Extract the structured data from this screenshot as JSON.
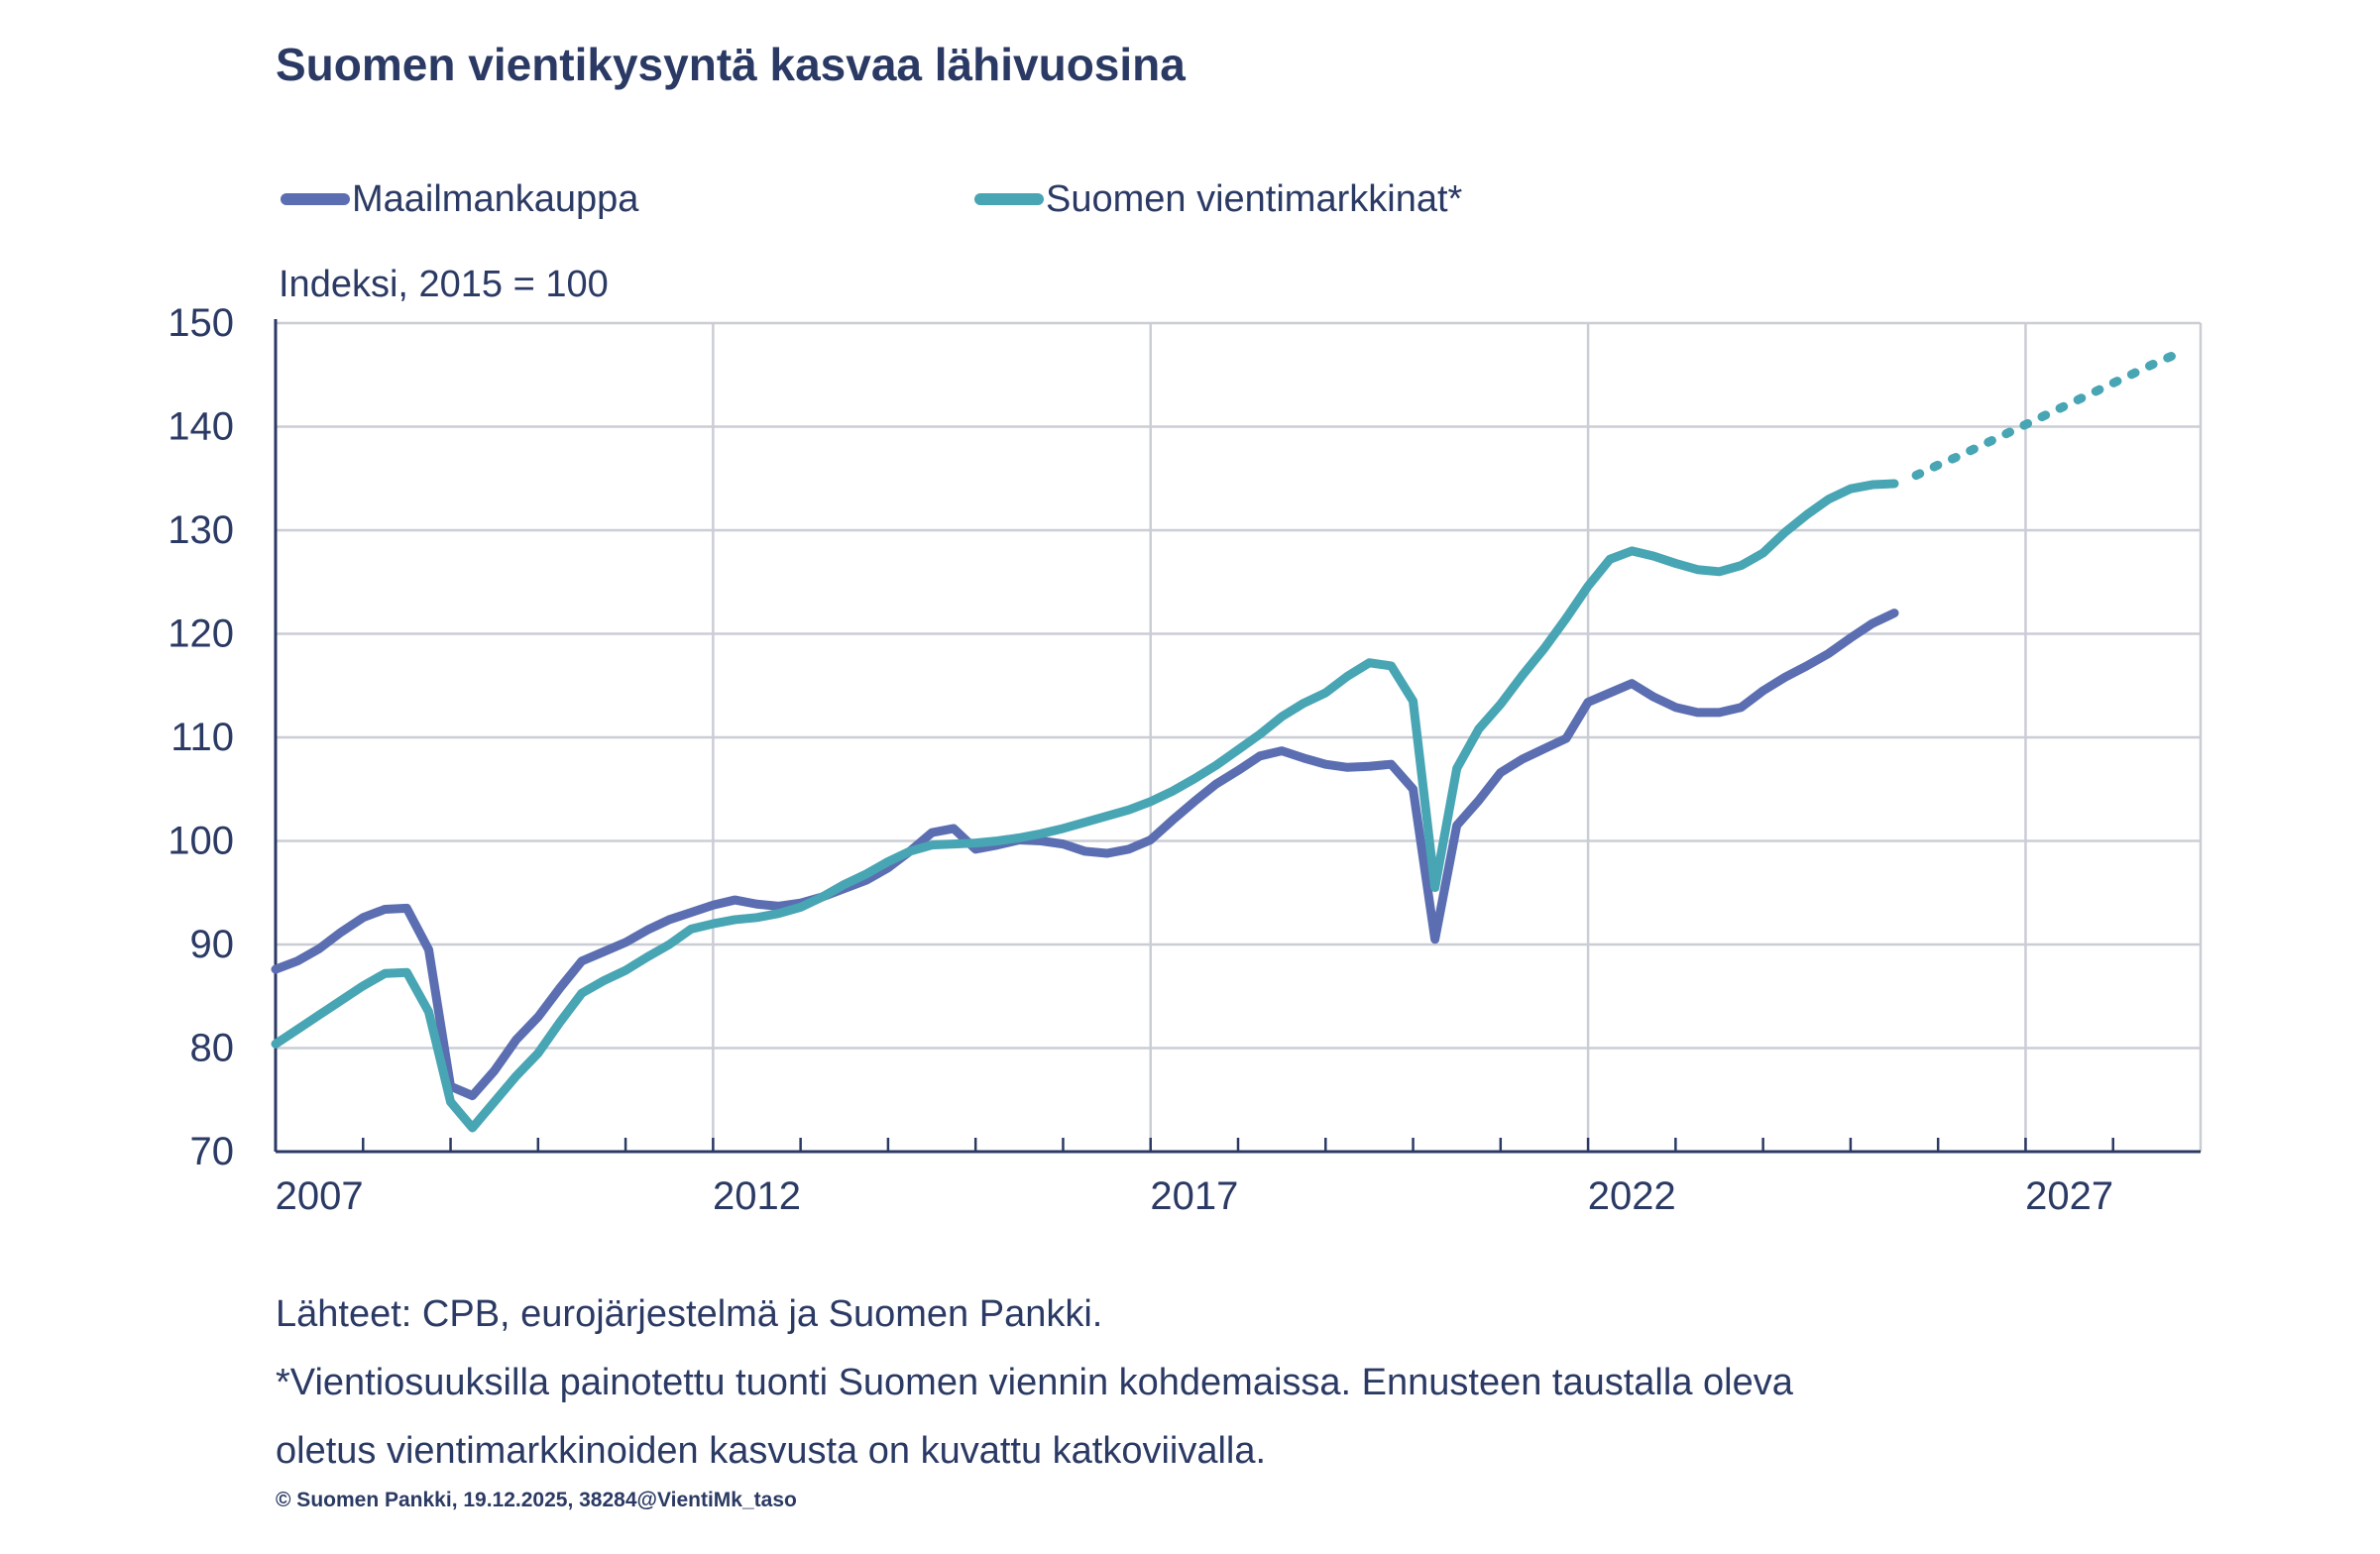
{
  "title": "Suomen vientikysyntä kasvaa lähivuosina",
  "legend": {
    "items": [
      {
        "label": "Maailmankauppa",
        "color": "#5B6EB1"
      },
      {
        "label": "Suomen vientimarkkinat*",
        "color": "#48A5B4"
      }
    ]
  },
  "unit_label": "Indeksi, 2015 = 100",
  "footer": {
    "sources": "Lähteet: CPB, eurojärjestelmä ja Suomen Pankki.",
    "footnote_line1": "*Vientiosuuksilla painotettu tuonti Suomen viennin kohdemaissa. Ennusteen taustalla oleva",
    "footnote_line2": "oletus vientimarkkinoiden kasvusta on kuvattu katkoviivalla.",
    "copyright": "© Suomen Pankki, 19.12.2025, 38284@VientiMk_taso"
  },
  "colors": {
    "text": "#2B3A64",
    "axis": "#2B3A64",
    "gridline": "#CBCDD5",
    "world_trade": "#5B6EB1",
    "export_markets": "#48A5B4",
    "background": "#FFFFFF"
  },
  "chart_data": {
    "type": "line",
    "title": "Suomen vientikysyntä kasvaa lähivuosina",
    "ylabel": "Indeksi, 2015 = 100",
    "xlabel": "",
    "frequency": "quarterly",
    "xlim": [
      2007,
      2029
    ],
    "ylim": [
      70,
      150
    ],
    "y_ticks": [
      70,
      80,
      90,
      100,
      110,
      120,
      130,
      140,
      150
    ],
    "x_ticks": [
      2007,
      2012,
      2017,
      2022,
      2027
    ],
    "x_gridlines": [
      2012,
      2017,
      2022,
      2027
    ],
    "grid": "on",
    "legend_position": "top",
    "series": [
      {
        "name": "Maailmankauppa",
        "color": "#5B6EB1",
        "style": "solid",
        "start": 2007.0,
        "step": 0.25,
        "values": [
          87.6,
          88.4,
          89.6,
          91.2,
          92.6,
          93.4,
          93.5,
          89.5,
          76.3,
          75.4,
          77.8,
          80.8,
          83.0,
          85.8,
          88.4,
          89.3,
          90.2,
          91.4,
          92.4,
          93.1,
          93.8,
          94.3,
          93.9,
          93.7,
          94.0,
          94.6,
          95.4,
          96.2,
          97.4,
          99.0,
          100.8,
          101.2,
          99.2,
          99.6,
          100.1,
          100.0,
          99.7,
          99.0,
          98.8,
          99.2,
          100.1,
          102.0,
          103.8,
          105.5,
          106.8,
          108.2,
          108.7,
          108.0,
          107.4,
          107.1,
          107.2,
          107.4,
          105.0,
          90.5,
          101.5,
          103.9,
          106.6,
          107.9,
          108.9,
          109.9,
          113.4,
          114.3,
          115.2,
          113.9,
          112.9,
          112.4,
          112.4,
          112.9,
          114.5,
          115.8,
          116.9,
          118.1,
          119.6,
          121.0,
          122.0
        ]
      },
      {
        "name": "Suomen vientimarkkinat",
        "color": "#48A5B4",
        "style": "solid",
        "start": 2007.0,
        "step": 0.25,
        "values": [
          80.4,
          81.8,
          83.2,
          84.6,
          86.0,
          87.2,
          87.3,
          83.5,
          74.8,
          72.3,
          74.8,
          77.3,
          79.5,
          82.5,
          85.3,
          86.5,
          87.5,
          88.8,
          90.0,
          91.5,
          92.0,
          92.4,
          92.6,
          93.0,
          93.6,
          94.6,
          95.8,
          96.8,
          98.0,
          99.0,
          99.6,
          99.7,
          99.8,
          100.0,
          100.3,
          100.7,
          101.2,
          101.8,
          102.4,
          103.0,
          103.8,
          104.8,
          106.0,
          107.3,
          108.8,
          110.3,
          112.0,
          113.3,
          114.3,
          115.9,
          117.2,
          116.9,
          113.5,
          95.5,
          107.0,
          110.8,
          113.2,
          116.0,
          118.6,
          121.5,
          124.6,
          127.2,
          128.0,
          127.5,
          126.8,
          126.2,
          126.0,
          126.6,
          127.8,
          129.8,
          131.5,
          133.0,
          134.0,
          134.4,
          134.5
        ]
      },
      {
        "name": "Suomen vientimarkkinat, ennuste",
        "color": "#48A5B4",
        "style": "dotted",
        "start": 2025.75,
        "step": 0.25,
        "values": [
          135.3,
          136.3,
          137.2,
          138.2,
          139.2,
          140.2,
          141.2,
          142.2,
          143.2,
          144.2,
          145.2,
          146.2,
          147.1
        ]
      }
    ]
  }
}
